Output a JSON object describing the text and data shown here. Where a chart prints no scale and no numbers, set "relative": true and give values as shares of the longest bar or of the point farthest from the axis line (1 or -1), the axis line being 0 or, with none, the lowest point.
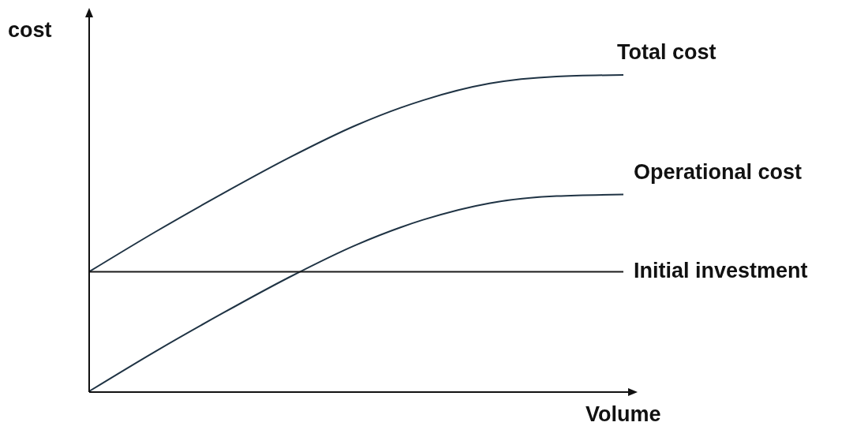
{
  "chart_data": {
    "type": "line",
    "relative": true,
    "xlabel": "Volume",
    "ylabel": "cost",
    "categories": [
      null,
      null,
      null,
      null,
      null,
      null,
      null,
      null,
      null
    ],
    "marker": "none",
    "series": [
      {
        "name": "Total cost",
        "color": "#1f3344",
        "values": [
          0.378,
          0.505,
          0.625,
          0.739,
          0.841,
          0.92,
          0.973,
          0.995,
          1.0
        ]
      },
      {
        "name": "Operational cost",
        "color": "#1f3344",
        "values": [
          0,
          0.127,
          0.247,
          0.361,
          0.463,
          0.542,
          0.595,
          0.617,
          0.622
        ]
      },
      {
        "name": "Initial investment",
        "color": "#1a1a1a",
        "values": [
          0.378,
          0.378,
          0.378,
          0.378,
          0.378,
          0.378,
          0.378,
          0.378,
          0.378
        ]
      }
    ]
  }
}
